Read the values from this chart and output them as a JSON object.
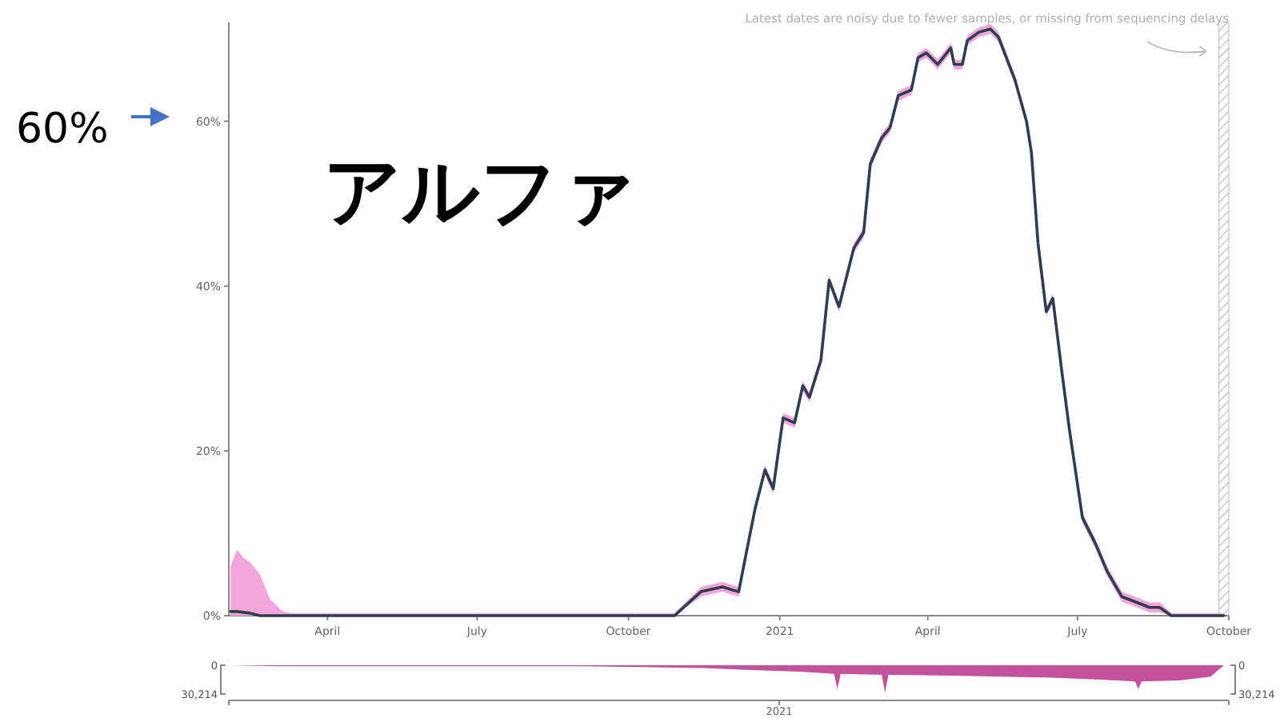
{
  "chart_data": [
    {
      "type": "line",
      "title": "アルファ",
      "annotations": [
        "60%"
      ],
      "x": [
        "2020-02-02",
        "2020-02-06",
        "2020-02-10",
        "2020-02-14",
        "2020-02-20",
        "2020-02-26",
        "2020-03-05",
        "2020-03-10",
        "2020-05-01",
        "2020-08-01",
        "2020-10-29",
        "2020-11-14",
        "2020-11-27",
        "2020-12-07",
        "2020-12-12",
        "2020-12-17",
        "2020-12-23",
        "2020-12-28",
        "2021-01-03",
        "2021-01-10",
        "2021-01-15",
        "2021-01-19",
        "2021-01-26",
        "2021-01-31",
        "2021-02-06",
        "2021-02-15",
        "2021-02-21",
        "2021-02-25",
        "2021-03-04",
        "2021-03-09",
        "2021-03-14",
        "2021-03-22",
        "2021-03-26",
        "2021-03-31",
        "2021-04-07",
        "2021-04-15",
        "2021-04-17",
        "2021-04-22",
        "2021-04-25",
        "2021-05-02",
        "2021-05-09",
        "2021-05-14",
        "2021-05-24",
        "2021-05-31",
        "2021-06-03",
        "2021-06-07",
        "2021-06-12",
        "2021-06-16",
        "2021-06-21",
        "2021-06-26",
        "2021-07-04",
        "2021-07-12",
        "2021-07-19",
        "2021-07-28",
        "2021-08-14",
        "2021-08-20",
        "2021-08-27",
        "2021-09-28"
      ],
      "series": [
        {
          "color": "#2e3d4f",
          "values": [
            0.5,
            0.5,
            0.4,
            0.3,
            0,
            0,
            0,
            0,
            0,
            0,
            0,
            2.9,
            3.5,
            2.9,
            8,
            13,
            17.7,
            15.4,
            24,
            23.4,
            27.9,
            26.5,
            31,
            40.7,
            37.5,
            44.6,
            46.5,
            54.8,
            58,
            59.2,
            63.1,
            63.8,
            67.7,
            68.3,
            66.9,
            68.9,
            66.9,
            66.9,
            69.8,
            70.8,
            71.2,
            70.2,
            65,
            60,
            56.2,
            45.2,
            36.9,
            38.5,
            30.4,
            22.7,
            11.9,
            8.7,
            5.4,
            2.3,
            1,
            1,
            0,
            0
          ],
          "upper": [
            6,
            8,
            7,
            6.5,
            5,
            2,
            0.5,
            0.3,
            0.3,
            0.3,
            0.3,
            3.5,
            4.1,
            3.5,
            8.6,
            13.6,
            18.3,
            16,
            24.6,
            24,
            28.5,
            27.1,
            31.6,
            41.3,
            38.1,
            45.2,
            47.1,
            55.4,
            58.6,
            59.8,
            63.7,
            64.4,
            68.3,
            68.9,
            67.5,
            69.5,
            67.5,
            67.5,
            70.4,
            71.4,
            71.8,
            70.8,
            65.6,
            60.6,
            56.8,
            45.8,
            37.5,
            39.1,
            31,
            23.3,
            12.5,
            9.3,
            6,
            2.9,
            1.6,
            1.6,
            0.3,
            0.3
          ],
          "lower": [
            0,
            0,
            0,
            0,
            0,
            0,
            0,
            0,
            0,
            0,
            0,
            2.3,
            2.9,
            2.3,
            7.4,
            12.4,
            17.1,
            14.8,
            23.4,
            22.8,
            27.3,
            25.9,
            30.4,
            40.1,
            36.9,
            44,
            45.9,
            54.2,
            57.4,
            58.6,
            62.5,
            63.2,
            67.1,
            67.7,
            66.3,
            68.3,
            66.3,
            66.3,
            69.2,
            70.2,
            70.6,
            69.6,
            64.4,
            59.4,
            55.6,
            44.6,
            36.3,
            37.9,
            29.8,
            22.1,
            11.3,
            8.1,
            4.8,
            1.7,
            0.4,
            0.4,
            0,
            0
          ]
        }
      ],
      "xlim": [
        "2020-02-01",
        "2021-10-01"
      ],
      "ylim": [
        0,
        72
      ],
      "xticks": [
        {
          "value": "2020-04-01",
          "label": "April"
        },
        {
          "value": "2020-07-01",
          "label": "July"
        },
        {
          "value": "2020-10-01",
          "label": "October"
        },
        {
          "value": "2021-01-01",
          "label": "2021"
        },
        {
          "value": "2021-04-01",
          "label": "April"
        },
        {
          "value": "2021-07-01",
          "label": "July"
        },
        {
          "value": "2021-10-01",
          "label": "October"
        }
      ],
      "yticks": [
        {
          "value": 0,
          "label": "0%"
        },
        {
          "value": 20,
          "label": "20%"
        },
        {
          "value": 40,
          "label": "40%"
        },
        {
          "value": 60,
          "label": "60%"
        }
      ],
      "bands": [
        {
          "axis": "x",
          "from": "2021-09-25",
          "to": "2021-10-01",
          "label": "Latest dates are noisy due to fewer samples, or missing from sequencing delays",
          "color": "#bbbbbb"
        }
      ]
    },
    {
      "type": "area",
      "x": [
        "2020-02-01",
        "2020-03-01",
        "2020-06-01",
        "2020-09-01",
        "2020-10-15",
        "2020-11-15",
        "2020-12-15",
        "2021-01-15",
        "2021-02-03",
        "2021-02-05",
        "2021-02-07",
        "2021-03-04",
        "2021-03-06",
        "2021-03-08",
        "2021-04-15",
        "2021-05-15",
        "2021-06-15",
        "2021-07-15",
        "2021-08-05",
        "2021-08-07",
        "2021-08-09",
        "2021-09-01",
        "2021-09-20",
        "2021-09-28"
      ],
      "values": [
        0,
        1000,
        1000,
        1000,
        2000,
        3000,
        5000,
        7000,
        9000,
        25000,
        9000,
        10000,
        29000,
        10000,
        11000,
        12000,
        13000,
        15000,
        17000,
        25000,
        17000,
        16000,
        12000,
        0
      ],
      "color": "#c4519d",
      "xlim": [
        "2020-02-01",
        "2021-10-01"
      ],
      "ylim": [
        30214,
        0
      ],
      "yticks": [
        {
          "value": 0,
          "label": "0"
        },
        {
          "value": 30214,
          "label": "30,214"
        }
      ],
      "y2lim": [
        30214,
        0
      ],
      "y2ticks": [
        {
          "value": 0,
          "label": "0"
        },
        {
          "value": 30214,
          "label": "30,214"
        }
      ],
      "tick_labels": "y",
      "annotations": [
        "2021"
      ]
    }
  ]
}
